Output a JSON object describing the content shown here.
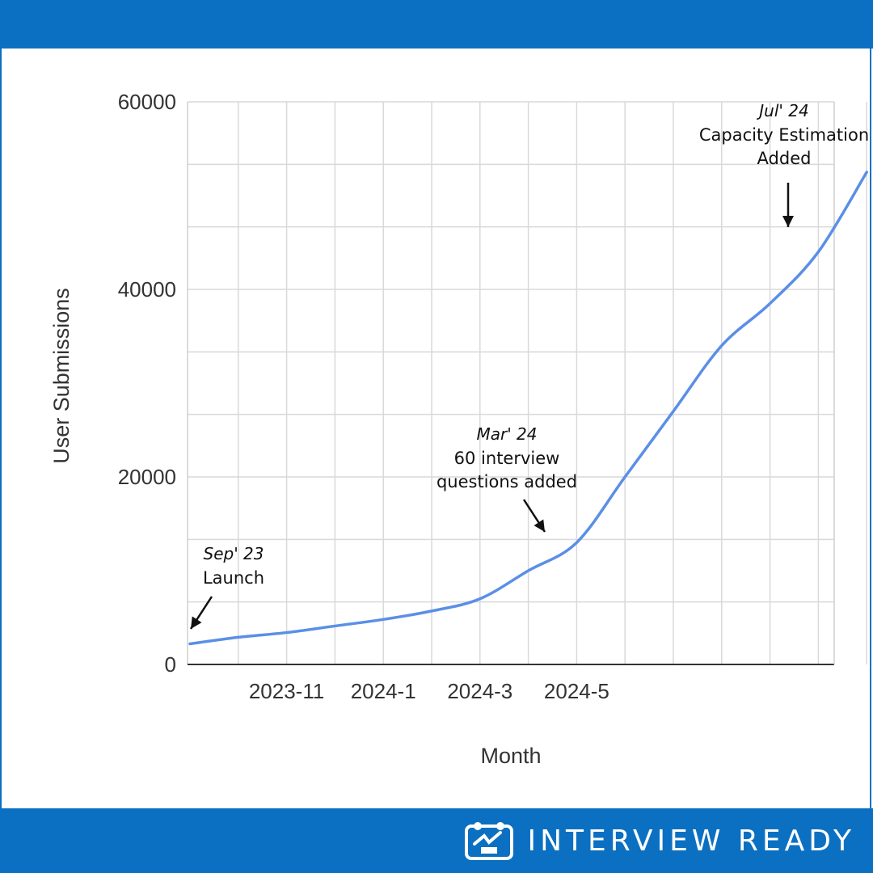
{
  "chart_data": {
    "type": "line",
    "xlabel": "Month",
    "ylabel": "User Submissions",
    "ylim": [
      0,
      60000
    ],
    "yticks": [
      "0",
      "20000",
      "40000",
      "60000"
    ],
    "xticks": [
      {
        "month": "2023-11",
        "label": "2023-11"
      },
      {
        "month": "2024-1",
        "label": "2024-1"
      },
      {
        "month": "2024-3",
        "label": "2024-3"
      },
      {
        "month": "2024-5",
        "label": "2024-5"
      }
    ],
    "series": [
      {
        "color": "#5b8fe6",
        "points": [
          {
            "month": "2023-9",
            "value": 2200
          },
          {
            "month": "2023-10",
            "value": 2900
          },
          {
            "month": "2023-11",
            "value": 3400
          },
          {
            "month": "2023-12",
            "value": 4100
          },
          {
            "month": "2024-1",
            "value": 4800
          },
          {
            "month": "2024-2",
            "value": 5700
          },
          {
            "month": "2024-3",
            "value": 7000
          },
          {
            "month": "2024-4",
            "value": 10000
          },
          {
            "month": "2024-5",
            "value": 13000
          },
          {
            "month": "2024-6",
            "value": 20000
          },
          {
            "month": "2024-7",
            "value": 27000
          },
          {
            "month": "2024-8",
            "value": 34000
          },
          {
            "month": "2024-9",
            "value": 38500
          },
          {
            "month": "2024-10",
            "value": 44000
          },
          {
            "month": "2024-11",
            "value": 52500
          }
        ]
      }
    ],
    "annotations": [
      {
        "date": "Sep' 23",
        "lines": [
          "Launch"
        ],
        "target_month": "2023-9",
        "target_value": 2200
      },
      {
        "date": "Mar' 24",
        "lines": [
          "60 interview",
          "questions added"
        ],
        "target_month": "2024-5",
        "target_value": 13000
      },
      {
        "date": "Jul' 24",
        "lines": [
          "Capacity Estimation",
          "Added"
        ],
        "target_month": "2024-10",
        "target_value": 46000
      }
    ],
    "grid": true,
    "legend": "none"
  },
  "brand": {
    "name": "INTERVIEW READY",
    "icon": "interview-ready-logo-icon"
  },
  "colors": {
    "band": "#0b70c2",
    "line": "#5b8fe6",
    "grid": "#d9d9d9"
  }
}
